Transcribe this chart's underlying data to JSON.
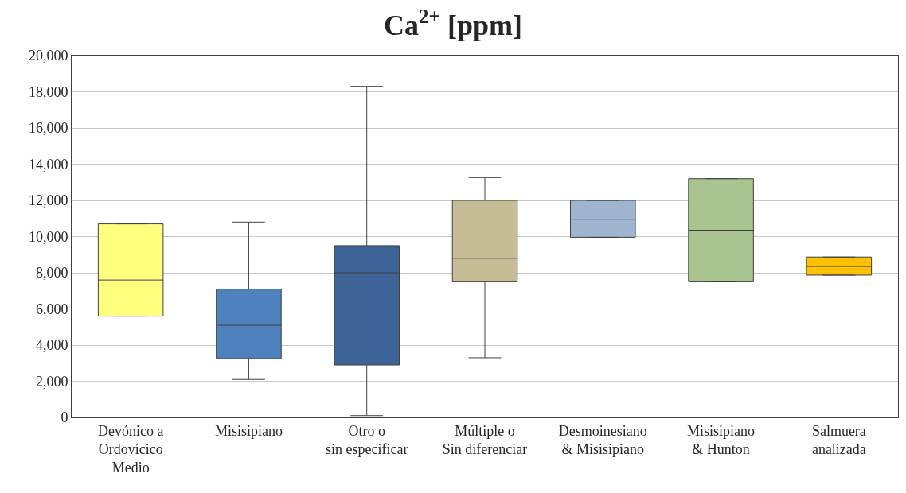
{
  "chart_data": {
    "type": "box",
    "title": "Ca$^{2+}$ [ppm]",
    "categories": [
      "Devónico a\nOrdovícico\nMedio",
      "Misisipiano",
      "Otro o\nsin especificar",
      "Múltiple o\nSin diferenciar",
      "Desmoinesiano\n& Misisipiano",
      "Misisipiano\n& Hunton",
      "Salmuera\nanalizada"
    ],
    "colors": [
      "#ffff80",
      "#4f81bd",
      "#3d6496",
      "#c4bd97",
      "#9fb4cf",
      "#a9c48e",
      "#ffc000"
    ],
    "boxes": [
      {
        "low": 5600,
        "q1": 5600,
        "median": 7600,
        "q3": 10700,
        "high": 10700
      },
      {
        "low": 2100,
        "q1": 3260,
        "median": 5100,
        "q3": 7100,
        "high": 10800
      },
      {
        "low": 100,
        "q1": 2900,
        "median": 8000,
        "q3": 9500,
        "high": 18300
      },
      {
        "low": 3300,
        "q1": 7500,
        "median": 8800,
        "q3": 12000,
        "high": 13260
      },
      {
        "low": 9960,
        "q1": 9960,
        "median": 10960,
        "q3": 12000,
        "high": 12000
      },
      {
        "low": 7500,
        "q1": 7500,
        "median": 10350,
        "q3": 13200,
        "high": 13200
      },
      {
        "low": 7870,
        "q1": 7870,
        "median": 8350,
        "q3": 8870,
        "high": 8870
      }
    ],
    "ylim": [
      0,
      20000
    ],
    "yticks": [
      0,
      {
        "value": 2000,
        "label": "2,000"
      },
      {
        "value": 4000,
        "label": "4,000"
      },
      {
        "value": 6000,
        "label": "6,000"
      },
      {
        "value": 8000,
        "label": "8,000"
      },
      {
        "value": 10000,
        "label": "10,000"
      },
      {
        "value": 12000,
        "label": "12,000"
      },
      {
        "value": 14000,
        "label": "14,000"
      },
      {
        "value": 16000,
        "label": "16,000"
      },
      {
        "value": 18000,
        "label": "18,000"
      },
      {
        "value": 20000,
        "label": "20,000"
      }
    ],
    "grid": "y"
  }
}
